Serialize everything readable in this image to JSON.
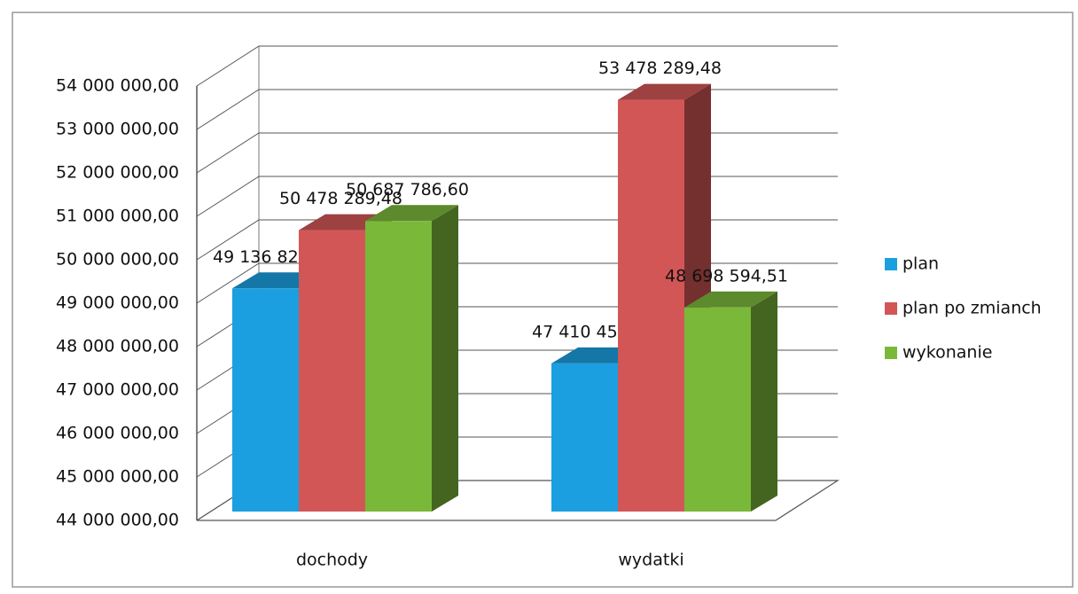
{
  "chart_data": {
    "type": "bar",
    "categories": [
      "dochody",
      "wydatki"
    ],
    "series": [
      {
        "name": "plan",
        "color": "#1c9fe0",
        "values": [
          49136821.0,
          47410454.0
        ],
        "value_labels": [
          "49 136 821,00",
          "47 410 454,00"
        ]
      },
      {
        "name": "plan po zmianch",
        "color": "#d25656",
        "values": [
          50478289.48,
          53478289.48
        ],
        "value_labels": [
          "50 478 289,48",
          "53 478 289,48"
        ]
      },
      {
        "name": "wykonanie",
        "color": "#7ab83a",
        "values": [
          50687786.6,
          48698594.51
        ],
        "value_labels": [
          "50 687 786,60",
          "48 698 594,51"
        ]
      }
    ],
    "ylim": [
      44000000,
      54000000
    ],
    "yticks": [
      {
        "value": 44000000,
        "label": "44 000 000,00"
      },
      {
        "value": 45000000,
        "label": "45 000 000,00"
      },
      {
        "value": 46000000,
        "label": "46 000 000,00"
      },
      {
        "value": 47000000,
        "label": "47 000 000,00"
      },
      {
        "value": 48000000,
        "label": "48 000 000,00"
      },
      {
        "value": 49000000,
        "label": "49 000 000,00"
      },
      {
        "value": 50000000,
        "label": "50 000 000,00"
      },
      {
        "value": 51000000,
        "label": "51 000 000,00"
      },
      {
        "value": 52000000,
        "label": "52 000 000,00"
      },
      {
        "value": 53000000,
        "label": "53 000 000,00"
      },
      {
        "value": 54000000,
        "label": "54 000 000,00"
      }
    ],
    "grid": true,
    "legend": "right"
  }
}
